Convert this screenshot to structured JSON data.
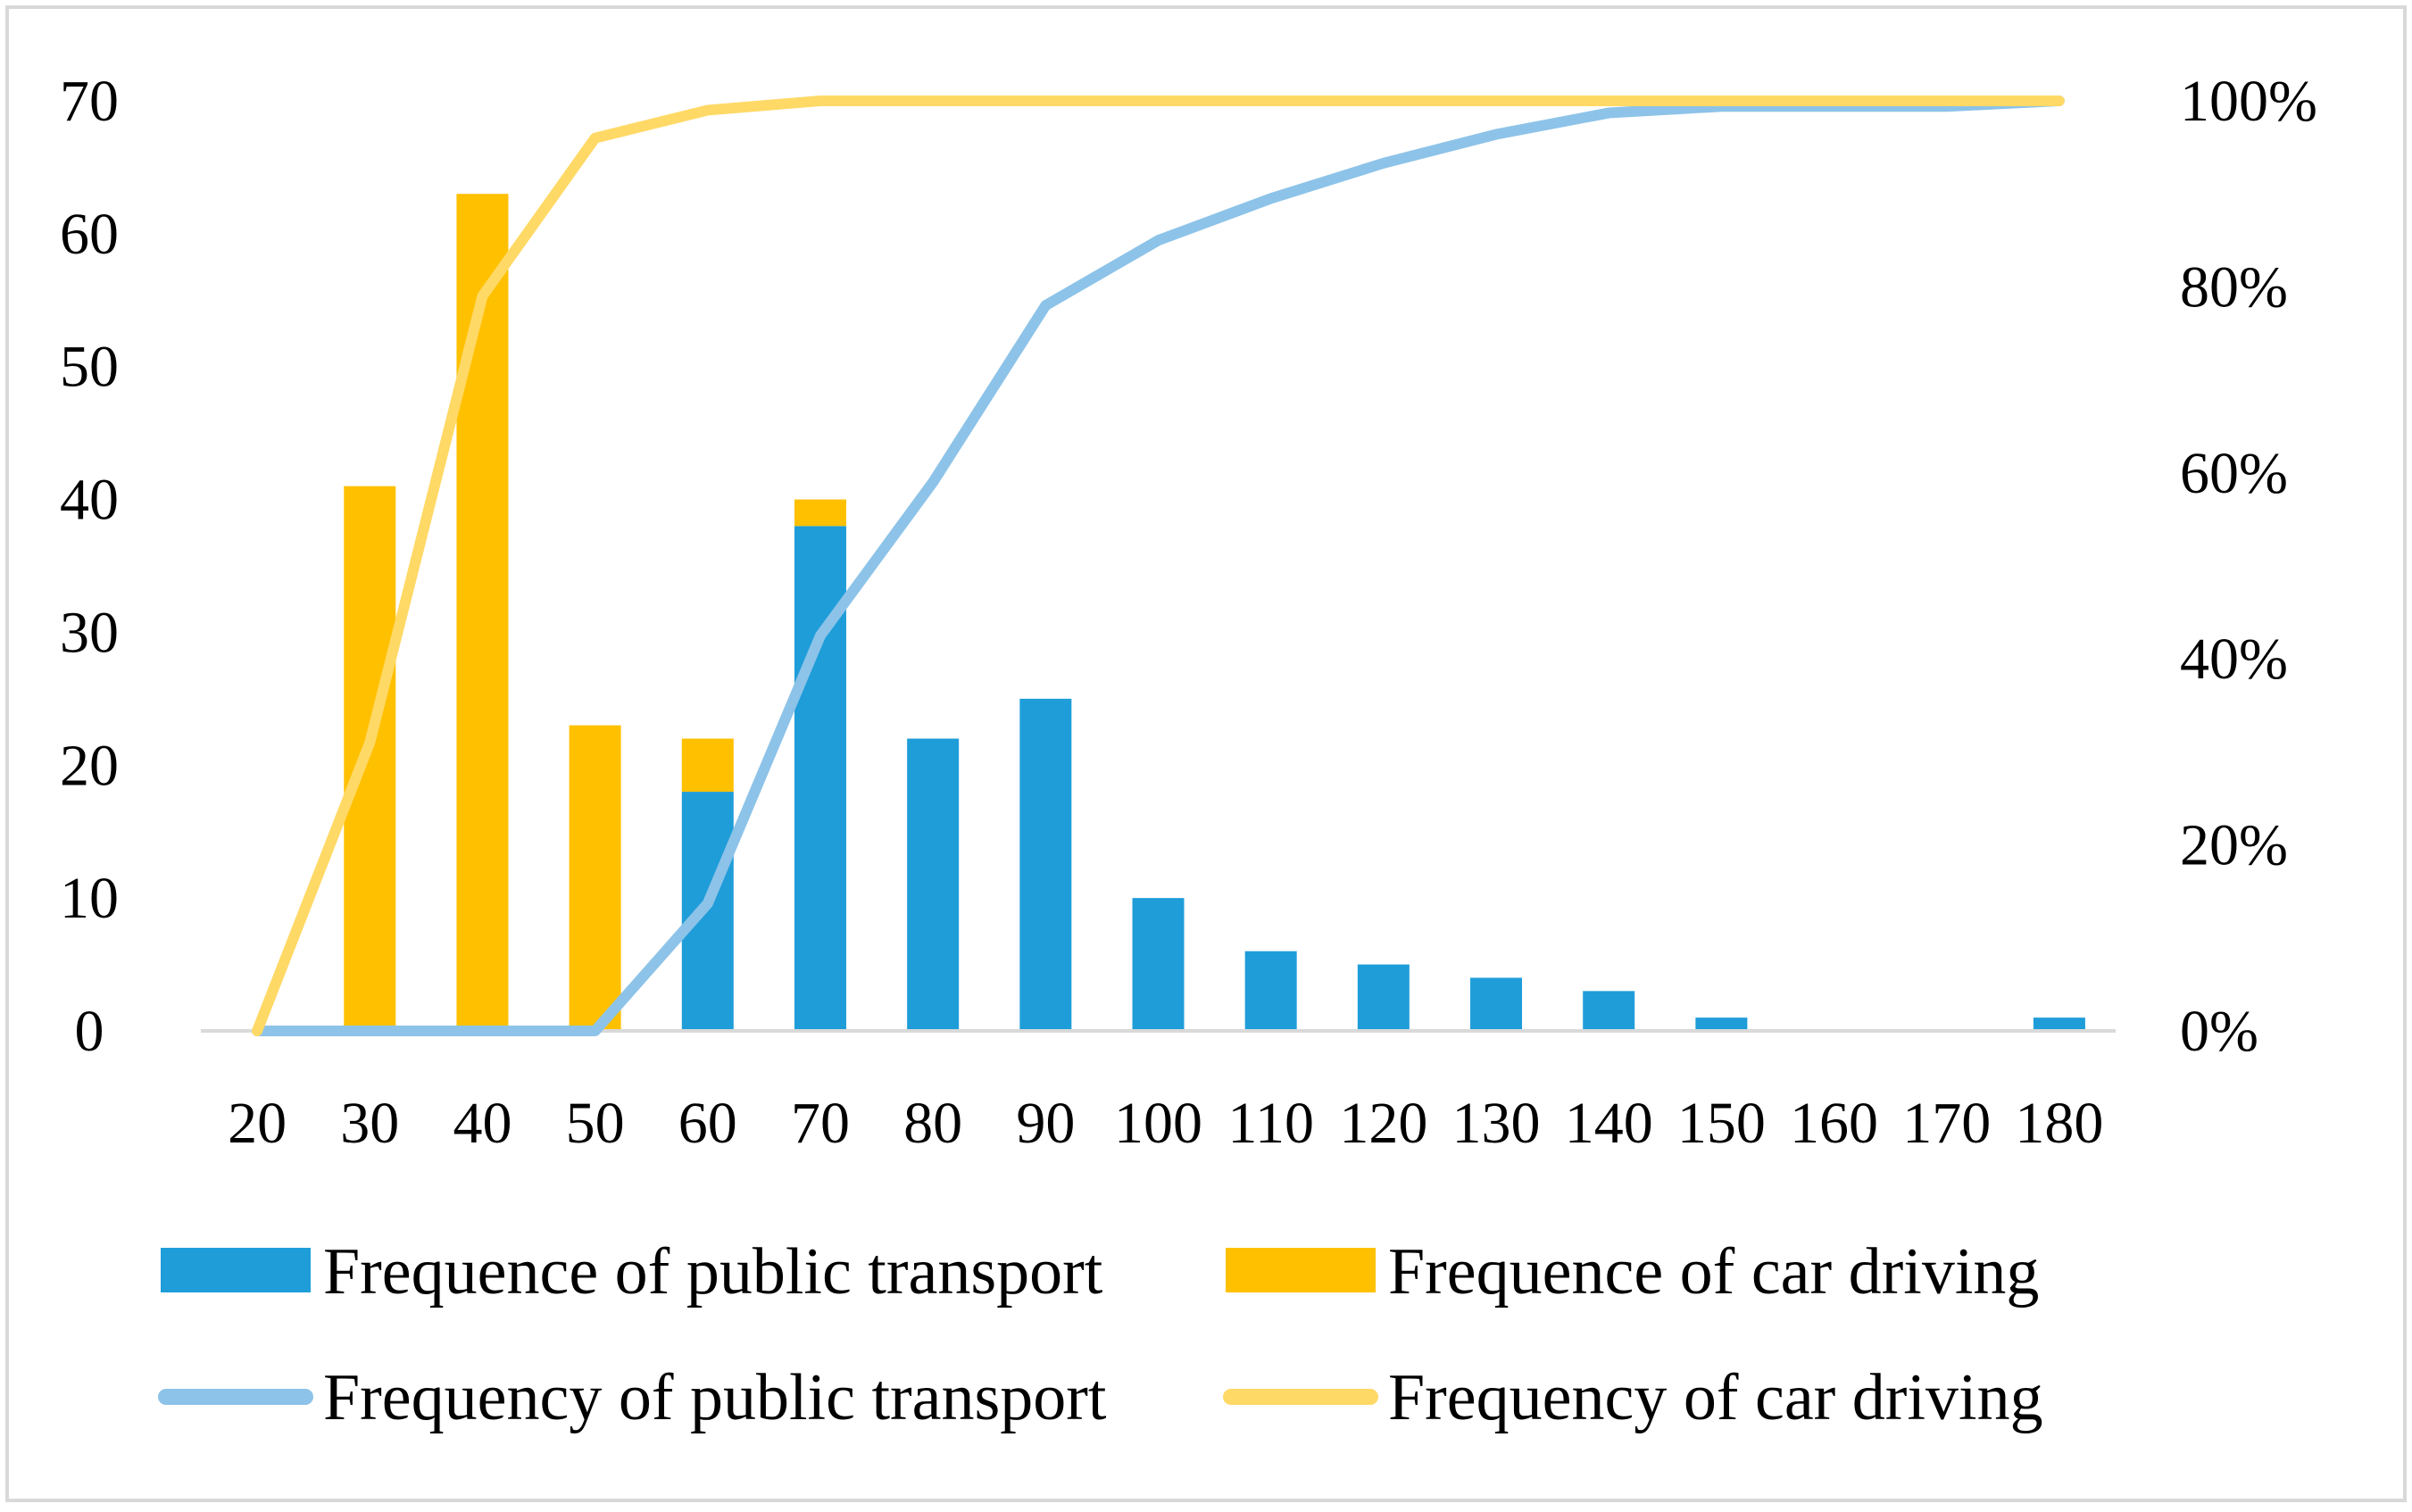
{
  "chart_data": {
    "type": "bar",
    "title": "",
    "xlabel": "",
    "ylabel": "",
    "ylim": [
      0,
      70
    ],
    "y2lim": [
      0,
      1
    ],
    "y_ticks": [
      "0",
      "10",
      "20",
      "30",
      "40",
      "50",
      "60",
      "70"
    ],
    "y2_ticks": [
      "0%",
      "20%",
      "40%",
      "60%",
      "80%",
      "100%"
    ],
    "categories": [
      "20",
      "30",
      "40",
      "50",
      "60",
      "70",
      "80",
      "90",
      "100",
      "110",
      "120",
      "130",
      "140",
      "150",
      "160",
      "170",
      "180"
    ],
    "bar_series": [
      {
        "name": "Frequence of public transport",
        "color": "#1F9DD9",
        "values": [
          0,
          0,
          0,
          0,
          18,
          38,
          22,
          25,
          10,
          6,
          5,
          4,
          3,
          1,
          0,
          0,
          1
        ]
      },
      {
        "name": "Frequence of car driving",
        "color": "#FFC000",
        "values": [
          0,
          41,
          63,
          23,
          4,
          2,
          0,
          0,
          0,
          0,
          0,
          0,
          0,
          0,
          0,
          0,
          0
        ]
      }
    ],
    "line_series": [
      {
        "name": "Frequency of public transport",
        "color": "#8DC3E8",
        "axis": "right",
        "values": [
          0,
          0,
          0,
          0,
          0.137,
          0.425,
          0.59,
          0.78,
          0.85,
          0.895,
          0.933,
          0.964,
          0.987,
          0.994,
          0.994,
          0.994,
          1.0
        ]
      },
      {
        "name": "Frequency of car driving",
        "color": "#FFD966",
        "axis": "right",
        "values": [
          0,
          0.31,
          0.79,
          0.96,
          0.99,
          1.0,
          1.0,
          1.0,
          1.0,
          1.0,
          1.0,
          1.0,
          1.0,
          1.0,
          1.0,
          1.0,
          1.0
        ]
      }
    ],
    "legend_position": "bottom"
  }
}
